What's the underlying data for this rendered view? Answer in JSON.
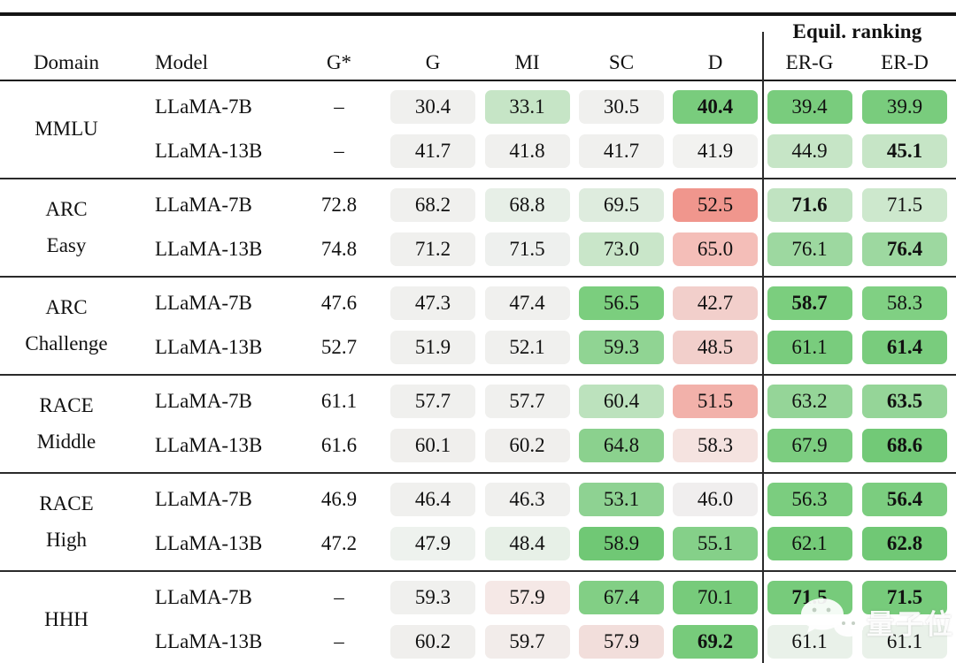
{
  "header": {
    "domain": "Domain",
    "model": "Model",
    "gstar": "G*",
    "g": "G",
    "mi": "MI",
    "sc": "SC",
    "d": "D",
    "equil_group": "Equil. ranking",
    "erg": "ER-G",
    "erd": "ER-D"
  },
  "palette": {
    "neutral": "#f0f0ee",
    "green_strong": "#79cc7d",
    "green_light": "#c6e5c6",
    "red_strong": "#f0968d",
    "red_light": "#f2cfcb"
  },
  "watermark": {
    "brand": "量子位",
    "icon": "wechat-icon"
  },
  "sections": [
    {
      "domain_lines": [
        "MMLU"
      ],
      "rows": [
        {
          "model": "LLaMA-7B",
          "gstar": "–",
          "cells": [
            {
              "v": "30.4",
              "bg": "#f0f0ee",
              "bold": false
            },
            {
              "v": "33.1",
              "bg": "#c6e5c6",
              "bold": false
            },
            {
              "v": "30.5",
              "bg": "#f0f0ee",
              "bold": false
            },
            {
              "v": "40.4",
              "bg": "#79cc7d",
              "bold": true
            },
            {
              "v": "39.4",
              "bg": "#79cc7d",
              "bold": false
            },
            {
              "v": "39.9",
              "bg": "#79cc7d",
              "bold": false
            }
          ]
        },
        {
          "model": "LLaMA-13B",
          "gstar": "–",
          "cells": [
            {
              "v": "41.7",
              "bg": "#f0f0ee",
              "bold": false
            },
            {
              "v": "41.8",
              "bg": "#f0f0ee",
              "bold": false
            },
            {
              "v": "41.7",
              "bg": "#f0f0ee",
              "bold": false
            },
            {
              "v": "41.9",
              "bg": "#f2f2f0",
              "bold": false
            },
            {
              "v": "44.9",
              "bg": "#c6e5c6",
              "bold": false
            },
            {
              "v": "45.1",
              "bg": "#c6e5c6",
              "bold": true
            }
          ]
        }
      ]
    },
    {
      "domain_lines": [
        "ARC",
        "Easy"
      ],
      "rows": [
        {
          "model": "LLaMA-7B",
          "gstar": "72.8",
          "cells": [
            {
              "v": "68.2",
              "bg": "#f0f0ee",
              "bold": false
            },
            {
              "v": "68.8",
              "bg": "#e7efe7",
              "bold": false
            },
            {
              "v": "69.5",
              "bg": "#deecde",
              "bold": false
            },
            {
              "v": "52.5",
              "bg": "#f0968d",
              "bold": false
            },
            {
              "v": "71.6",
              "bg": "#c0e3c1",
              "bold": true
            },
            {
              "v": "71.5",
              "bg": "#cde8cd",
              "bold": false
            }
          ]
        },
        {
          "model": "LLaMA-13B",
          "gstar": "74.8",
          "cells": [
            {
              "v": "71.2",
              "bg": "#f0f0ee",
              "bold": false
            },
            {
              "v": "71.5",
              "bg": "#eef0ee",
              "bold": false
            },
            {
              "v": "73.0",
              "bg": "#c9e6c9",
              "bold": false
            },
            {
              "v": "65.0",
              "bg": "#f4beb8",
              "bold": false
            },
            {
              "v": "76.1",
              "bg": "#9dd8a0",
              "bold": false
            },
            {
              "v": "76.4",
              "bg": "#9dd8a0",
              "bold": true
            }
          ]
        }
      ]
    },
    {
      "domain_lines": [
        "ARC",
        "Challenge"
      ],
      "rows": [
        {
          "model": "LLaMA-7B",
          "gstar": "47.6",
          "cells": [
            {
              "v": "47.3",
              "bg": "#f0f0ee",
              "bold": false
            },
            {
              "v": "47.4",
              "bg": "#f0f0ee",
              "bold": false
            },
            {
              "v": "56.5",
              "bg": "#7bce7e",
              "bold": false
            },
            {
              "v": "42.7",
              "bg": "#f2cfcb",
              "bold": false
            },
            {
              "v": "58.7",
              "bg": "#7bce7e",
              "bold": true
            },
            {
              "v": "58.3",
              "bg": "#80d083",
              "bold": false
            }
          ]
        },
        {
          "model": "LLaMA-13B",
          "gstar": "52.7",
          "cells": [
            {
              "v": "51.9",
              "bg": "#f0f0ee",
              "bold": false
            },
            {
              "v": "52.1",
              "bg": "#f0f0ee",
              "bold": false
            },
            {
              "v": "59.3",
              "bg": "#90d493",
              "bold": false
            },
            {
              "v": "48.5",
              "bg": "#f2cfcb",
              "bold": false
            },
            {
              "v": "61.1",
              "bg": "#79cc7d",
              "bold": false
            },
            {
              "v": "61.4",
              "bg": "#79cc7d",
              "bold": true
            }
          ]
        }
      ]
    },
    {
      "domain_lines": [
        "RACE",
        "Middle"
      ],
      "rows": [
        {
          "model": "LLaMA-7B",
          "gstar": "61.1",
          "cells": [
            {
              "v": "57.7",
              "bg": "#f0f0ee",
              "bold": false
            },
            {
              "v": "57.7",
              "bg": "#f0f0ee",
              "bold": false
            },
            {
              "v": "60.4",
              "bg": "#bce2bd",
              "bold": false
            },
            {
              "v": "51.5",
              "bg": "#f2b1aa",
              "bold": false
            },
            {
              "v": "63.2",
              "bg": "#95d598",
              "bold": false
            },
            {
              "v": "63.5",
              "bg": "#95d598",
              "bold": true
            }
          ]
        },
        {
          "model": "LLaMA-13B",
          "gstar": "61.6",
          "cells": [
            {
              "v": "60.1",
              "bg": "#f0efed",
              "bold": false
            },
            {
              "v": "60.2",
              "bg": "#f0efed",
              "bold": false
            },
            {
              "v": "64.8",
              "bg": "#8bd18e",
              "bold": false
            },
            {
              "v": "58.3",
              "bg": "#f5e3e0",
              "bold": false
            },
            {
              "v": "67.9",
              "bg": "#7ccd80",
              "bold": false
            },
            {
              "v": "68.6",
              "bg": "#72c977",
              "bold": true
            }
          ]
        }
      ]
    },
    {
      "domain_lines": [
        "RACE",
        "High"
      ],
      "rows": [
        {
          "model": "LLaMA-7B",
          "gstar": "46.9",
          "cells": [
            {
              "v": "46.4",
              "bg": "#f0f0ee",
              "bold": false
            },
            {
              "v": "46.3",
              "bg": "#f0f0ee",
              "bold": false
            },
            {
              "v": "53.1",
              "bg": "#8ed292",
              "bold": false
            },
            {
              "v": "46.0",
              "bg": "#f0eeee",
              "bold": false
            },
            {
              "v": "56.3",
              "bg": "#7bcd7f",
              "bold": false
            },
            {
              "v": "56.4",
              "bg": "#7bcd7f",
              "bold": true
            }
          ]
        },
        {
          "model": "LLaMA-13B",
          "gstar": "47.2",
          "cells": [
            {
              "v": "47.9",
              "bg": "#eef2ee",
              "bold": false
            },
            {
              "v": "48.4",
              "bg": "#e7f0e7",
              "bold": false
            },
            {
              "v": "58.9",
              "bg": "#70c875",
              "bold": false
            },
            {
              "v": "55.1",
              "bg": "#85d089",
              "bold": false
            },
            {
              "v": "62.1",
              "bg": "#74ca78",
              "bold": false
            },
            {
              "v": "62.8",
              "bg": "#70c875",
              "bold": true
            }
          ]
        }
      ]
    },
    {
      "domain_lines": [
        "HHH"
      ],
      "rows": [
        {
          "model": "LLaMA-7B",
          "gstar": "–",
          "cells": [
            {
              "v": "59.3",
              "bg": "#f0f0ee",
              "bold": false
            },
            {
              "v": "57.9",
              "bg": "#f5e8e6",
              "bold": false
            },
            {
              "v": "67.4",
              "bg": "#82cf85",
              "bold": false
            },
            {
              "v": "70.1",
              "bg": "#77cb7b",
              "bold": false
            },
            {
              "v": "71.5",
              "bg": "#77cb7b",
              "bold": true
            },
            {
              "v": "71.5",
              "bg": "#77cb7b",
              "bold": true
            }
          ]
        },
        {
          "model": "LLaMA-13B",
          "gstar": "–",
          "cells": [
            {
              "v": "60.2",
              "bg": "#f0efed",
              "bold": false
            },
            {
              "v": "59.7",
              "bg": "#f2ecea",
              "bold": false
            },
            {
              "v": "57.9",
              "bg": "#f2dedb",
              "bold": false
            },
            {
              "v": "69.2",
              "bg": "#77cb7b",
              "bold": true
            },
            {
              "v": "61.1",
              "bg": "#e9f1e9",
              "bold": false
            },
            {
              "v": "61.1",
              "bg": "#e9f1e9",
              "bold": false
            }
          ]
        }
      ]
    }
  ]
}
